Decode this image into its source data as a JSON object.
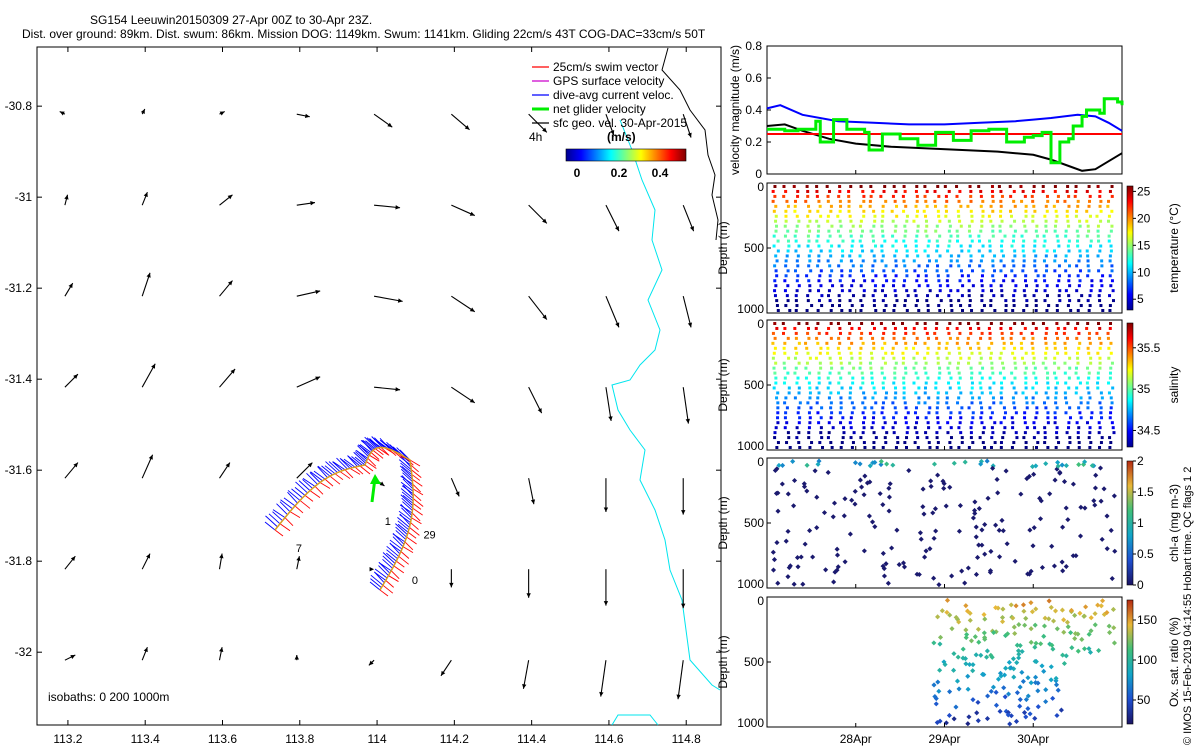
{
  "title_line1": "SG154 Leeuwin20150309 27-Apr 00Z to 30-Apr 23Z.",
  "title_line2": "Dist. over ground: 89km. Dist. swum: 86km. Mission DOG: 1149km. Swum: 1141km. Gliding 22cm/s 43T COG-DAC=33cm/s 50T",
  "credit": "© IMOS 15-Feb-2019 04:14:55 Hobart time. QC flags 1  2",
  "colors": {
    "swim": "#ff0000",
    "gps": "#cc00cc",
    "dac": "#0000ff",
    "net": "#00ee00",
    "sfc": "#000000",
    "isobath": "#00e5ee"
  },
  "chart_data": [
    {
      "type": "scatter",
      "name": "map",
      "xticks": [
        "113.2",
        "113.4",
        "113.6",
        "113.8",
        "114",
        "114.2",
        "114.4",
        "114.6",
        "114.8"
      ],
      "yticks": [
        "-30.8",
        "-31",
        "-31.2",
        "-31.4",
        "-31.6",
        "-31.8",
        "-32"
      ],
      "xlim": [
        113.12,
        114.89
      ],
      "ylim": [
        -32.16,
        -30.67
      ],
      "legend": [
        {
          "label": "25cm/s swim vector",
          "color": "#ff0000"
        },
        {
          "label": "GPS surface velocity",
          "color": "#cc00cc"
        },
        {
          "label": "dive-avg current veloc.",
          "color": "#0000ff"
        },
        {
          "label": "net glider velocity",
          "color": "#00ee00"
        },
        {
          "label": "sfc geo. vel. 30-Apr-2015",
          "color": "#000000"
        }
      ],
      "legend_position": "top-right",
      "colorbar": {
        "label": "(m/s)",
        "ticks": [
          "0",
          "0.2",
          "0.4"
        ],
        "range": [
          0,
          0.5
        ]
      },
      "labels": {
        "four_h": "4h",
        "isobaths": "isobaths: 0   200   1000m"
      },
      "track_labels": [
        {
          "text": "1",
          "x": 114.02,
          "y": -31.72
        },
        {
          "text": "29",
          "x": 114.12,
          "y": -31.75
        },
        {
          "text": "0",
          "x": 114.09,
          "y": -31.85
        },
        {
          "text": "7",
          "x": 113.79,
          "y": -31.78
        }
      ],
      "geostrophic_vectors_ms": [
        [
          [
            -0.02,
            0.01
          ],
          [
            0.01,
            0.02
          ],
          [
            0.02,
            0.01
          ],
          [
            0.05,
            -0.01
          ],
          [
            0.07,
            -0.05
          ],
          [
            0.07,
            -0.06
          ],
          [
            0.07,
            -0.07
          ],
          [
            0.03,
            -0.08
          ],
          [
            0.03,
            -0.09
          ]
        ],
        [
          [
            0.01,
            0.04
          ],
          [
            0.02,
            0.05
          ],
          [
            0.05,
            0.04
          ],
          [
            0.07,
            0.01
          ],
          [
            0.1,
            -0.01
          ],
          [
            0.09,
            -0.04
          ],
          [
            0.07,
            -0.07
          ],
          [
            0.05,
            -0.1
          ],
          [
            0.04,
            -0.1
          ]
        ],
        [
          [
            0.03,
            0.05
          ],
          [
            0.03,
            0.09
          ],
          [
            0.05,
            0.06
          ],
          [
            0.09,
            0.02
          ],
          [
            0.11,
            -0.02
          ],
          [
            0.09,
            -0.06
          ],
          [
            0.07,
            -0.09
          ],
          [
            0.05,
            -0.12
          ],
          [
            0.03,
            -0.12
          ]
        ],
        [
          [
            0.05,
            0.05
          ],
          [
            0.05,
            0.09
          ],
          [
            0.06,
            0.07
          ],
          [
            0.09,
            0.04
          ],
          [
            0.1,
            -0.01
          ],
          [
            0.09,
            -0.06
          ],
          [
            0.05,
            -0.1
          ],
          [
            0.02,
            -0.13
          ],
          [
            0.02,
            -0.14
          ]
        ],
        [
          [
            0.05,
            0.06
          ],
          [
            0.04,
            0.09
          ],
          [
            0.04,
            0.06
          ],
          [
            0.06,
            0.06
          ],
          [
            0.04,
            -0.03
          ],
          [
            0.03,
            -0.07
          ],
          [
            0.02,
            -0.1
          ],
          [
            0.0,
            -0.13
          ],
          [
            0.0,
            -0.14
          ]
        ],
        [
          [
            0.04,
            0.05
          ],
          [
            0.03,
            0.06
          ],
          [
            0.01,
            0.06
          ],
          [
            0.01,
            0.05
          ],
          [
            0.0,
            0.0
          ],
          [
            0.0,
            -0.07
          ],
          [
            0.0,
            -0.11
          ],
          [
            0.0,
            -0.14
          ],
          [
            0.0,
            -0.15
          ]
        ],
        [
          [
            0.04,
            0.02
          ],
          [
            0.02,
            0.05
          ],
          [
            0.01,
            0.05
          ],
          [
            0.0,
            0.02
          ],
          [
            -0.02,
            -0.02
          ],
          [
            -0.04,
            -0.06
          ],
          [
            -0.02,
            -0.11
          ],
          [
            -0.02,
            -0.14
          ],
          [
            -0.02,
            -0.15
          ]
        ]
      ],
      "vector_rows_lat": [
        -30.8,
        -31.0,
        -31.2,
        -31.4,
        -31.6,
        -31.8,
        -32.0
      ],
      "vector_cols_lon": [
        113.2,
        113.4,
        113.6,
        113.8,
        114.0,
        114.2,
        114.4,
        114.6,
        114.8
      ]
    },
    {
      "type": "line",
      "name": "velocity",
      "ylabel": "velocity magnitude (m/s)",
      "ylim": [
        0,
        0.8
      ],
      "yticks": [
        "0",
        "0.2",
        "0.4",
        "0.6",
        "0.8"
      ],
      "x_range_days": [
        0,
        4
      ],
      "series": [
        {
          "color": "#0000ff",
          "x": [
            0,
            0.15,
            0.4,
            0.8,
            1.2,
            1.6,
            2.0,
            2.4,
            2.8,
            3.0,
            3.2,
            3.5,
            3.7,
            3.85,
            4.0
          ],
          "y": [
            0.41,
            0.43,
            0.37,
            0.33,
            0.32,
            0.31,
            0.31,
            0.32,
            0.33,
            0.34,
            0.35,
            0.37,
            0.36,
            0.32,
            0.27
          ]
        },
        {
          "color": "#000000",
          "x": [
            0,
            0.2,
            0.4,
            0.7,
            1.0,
            1.4,
            1.8,
            2.2,
            2.6,
            3.0,
            3.2,
            3.4,
            3.55,
            3.7,
            3.85,
            4.0
          ],
          "y": [
            0.3,
            0.31,
            0.27,
            0.22,
            0.19,
            0.17,
            0.16,
            0.15,
            0.14,
            0.12,
            0.09,
            0.05,
            0.02,
            0.03,
            0.08,
            0.13
          ]
        },
        {
          "color": "#ff0000",
          "x": [
            0,
            4
          ],
          "y": [
            0.25,
            0.25
          ]
        },
        {
          "color": "#00ee00",
          "x": [
            0,
            0.2,
            0.35,
            0.55,
            0.6,
            0.75,
            0.9,
            1.1,
            1.15,
            1.3,
            1.5,
            1.7,
            1.9,
            2.1,
            2.3,
            2.5,
            2.7,
            2.9,
            3.0,
            3.1,
            3.2,
            3.3,
            3.4,
            3.45,
            3.55,
            3.6,
            3.75,
            3.8,
            3.95,
            4.0
          ],
          "y": [
            0.28,
            0.27,
            0.28,
            0.33,
            0.2,
            0.34,
            0.28,
            0.26,
            0.15,
            0.25,
            0.22,
            0.18,
            0.26,
            0.21,
            0.27,
            0.28,
            0.2,
            0.23,
            0.24,
            0.26,
            0.07,
            0.2,
            0.22,
            0.3,
            0.36,
            0.4,
            0.38,
            0.47,
            0.45,
            0.43
          ]
        }
      ]
    },
    {
      "type": "scatter",
      "name": "temperature",
      "ylabel": "Depth (m)",
      "cbar_label": "temperature (°C)",
      "ylim": [
        1000,
        0
      ],
      "yticks": [
        "0",
        "500",
        "1000"
      ],
      "cbar_ticks": [
        "5",
        "10",
        "15",
        "20",
        "25"
      ],
      "cbar_range": [
        3,
        26
      ]
    },
    {
      "type": "scatter",
      "name": "salinity",
      "ylabel": "Depth (m)",
      "cbar_label": "salinity",
      "ylim": [
        1000,
        0
      ],
      "yticks": [
        "0",
        "500",
        "1000"
      ],
      "cbar_ticks": [
        "34.5",
        "35",
        "35.5"
      ],
      "cbar_range": [
        34.3,
        35.8
      ]
    },
    {
      "type": "scatter",
      "name": "chla",
      "ylabel": "Depth (m)",
      "cbar_label": "chl-a (mg m-3)",
      "ylim": [
        1000,
        0
      ],
      "yticks": [
        "0",
        "500",
        "1000"
      ],
      "cbar_ticks": [
        "0",
        "0.5",
        "1",
        "1.5",
        "2"
      ],
      "cbar_range": [
        0,
        2
      ]
    },
    {
      "type": "scatter",
      "name": "oxygen",
      "ylabel": "Depth (m)",
      "cbar_label": "Ox. sat. ratio (%)",
      "ylim": [
        1000,
        0
      ],
      "yticks": [
        "0",
        "500",
        "1000"
      ],
      "cbar_ticks": [
        "50",
        "100",
        "150"
      ],
      "cbar_range": [
        20,
        175
      ],
      "xticks": [
        "28Apr",
        "29Apr",
        "30Apr"
      ],
      "x_range_days": [
        0,
        4
      ]
    }
  ]
}
